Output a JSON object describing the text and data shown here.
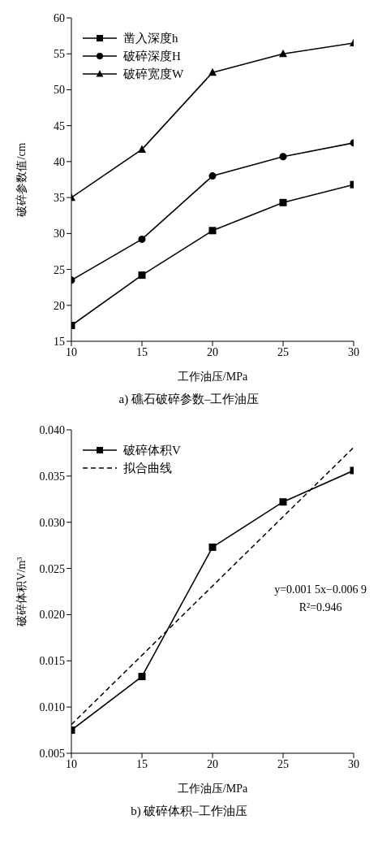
{
  "chart_data": [
    {
      "type": "line",
      "title": "a) 礁石破碎参数–工作油压",
      "xlabel": "工作油压/MPa",
      "ylabel": "破碎参数值/cm",
      "x": [
        10,
        15,
        20,
        25,
        30
      ],
      "series": [
        {
          "name": "凿入深度h",
          "color": "#000000",
          "marker": "square",
          "values": [
            17.2,
            24.2,
            30.4,
            34.3,
            36.8
          ]
        },
        {
          "name": "破碎深度H",
          "color": "#000000",
          "marker": "circle",
          "values": [
            23.5,
            29.2,
            38.0,
            40.7,
            42.6
          ]
        },
        {
          "name": "破碎宽度W",
          "color": "#000000",
          "marker": "triangle",
          "values": [
            35.0,
            41.7,
            52.4,
            55.0,
            56.5
          ]
        }
      ],
      "xlim": [
        10,
        30
      ],
      "xticks": [
        10,
        15,
        20,
        25,
        30
      ],
      "ylim": [
        15,
        60
      ],
      "yticks": [
        15,
        20,
        25,
        30,
        35,
        40,
        45,
        50,
        55,
        60
      ],
      "grid": false,
      "legend": "top left"
    },
    {
      "type": "line",
      "title": "b) 破碎体积–工作油压",
      "xlabel": "工作油压/MPa",
      "ylabel": "破碎体积V/m³",
      "x": [
        10,
        15,
        20,
        25,
        30
      ],
      "series": [
        {
          "name": "破碎体积V",
          "color": "#000000",
          "marker": "square",
          "values": [
            0.0075,
            0.0133,
            0.0273,
            0.0322,
            0.0356
          ]
        },
        {
          "name": "拟合曲线",
          "color": "#000000",
          "marker": "none",
          "line_style": "dashed",
          "x": [
            10,
            30
          ],
          "values": [
            0.0081,
            0.0381
          ]
        }
      ],
      "annotations": [
        "y=0.001 5x−0.006 9",
        "R²=0.946"
      ],
      "xlim": [
        10,
        30
      ],
      "xticks": [
        10,
        15,
        20,
        25,
        30
      ],
      "ylim": [
        0.005,
        0.04
      ],
      "yticks": [
        0.005,
        {
          "value": 0.01,
          "label": "0.010"
        },
        0.015,
        {
          "value": 0.02,
          "label": "0.020"
        },
        0.025,
        {
          "value": 0.03,
          "label": "0.030"
        },
        0.035,
        {
          "value": 0.04,
          "label": "0.040"
        }
      ],
      "grid": false,
      "legend": "top left"
    }
  ]
}
